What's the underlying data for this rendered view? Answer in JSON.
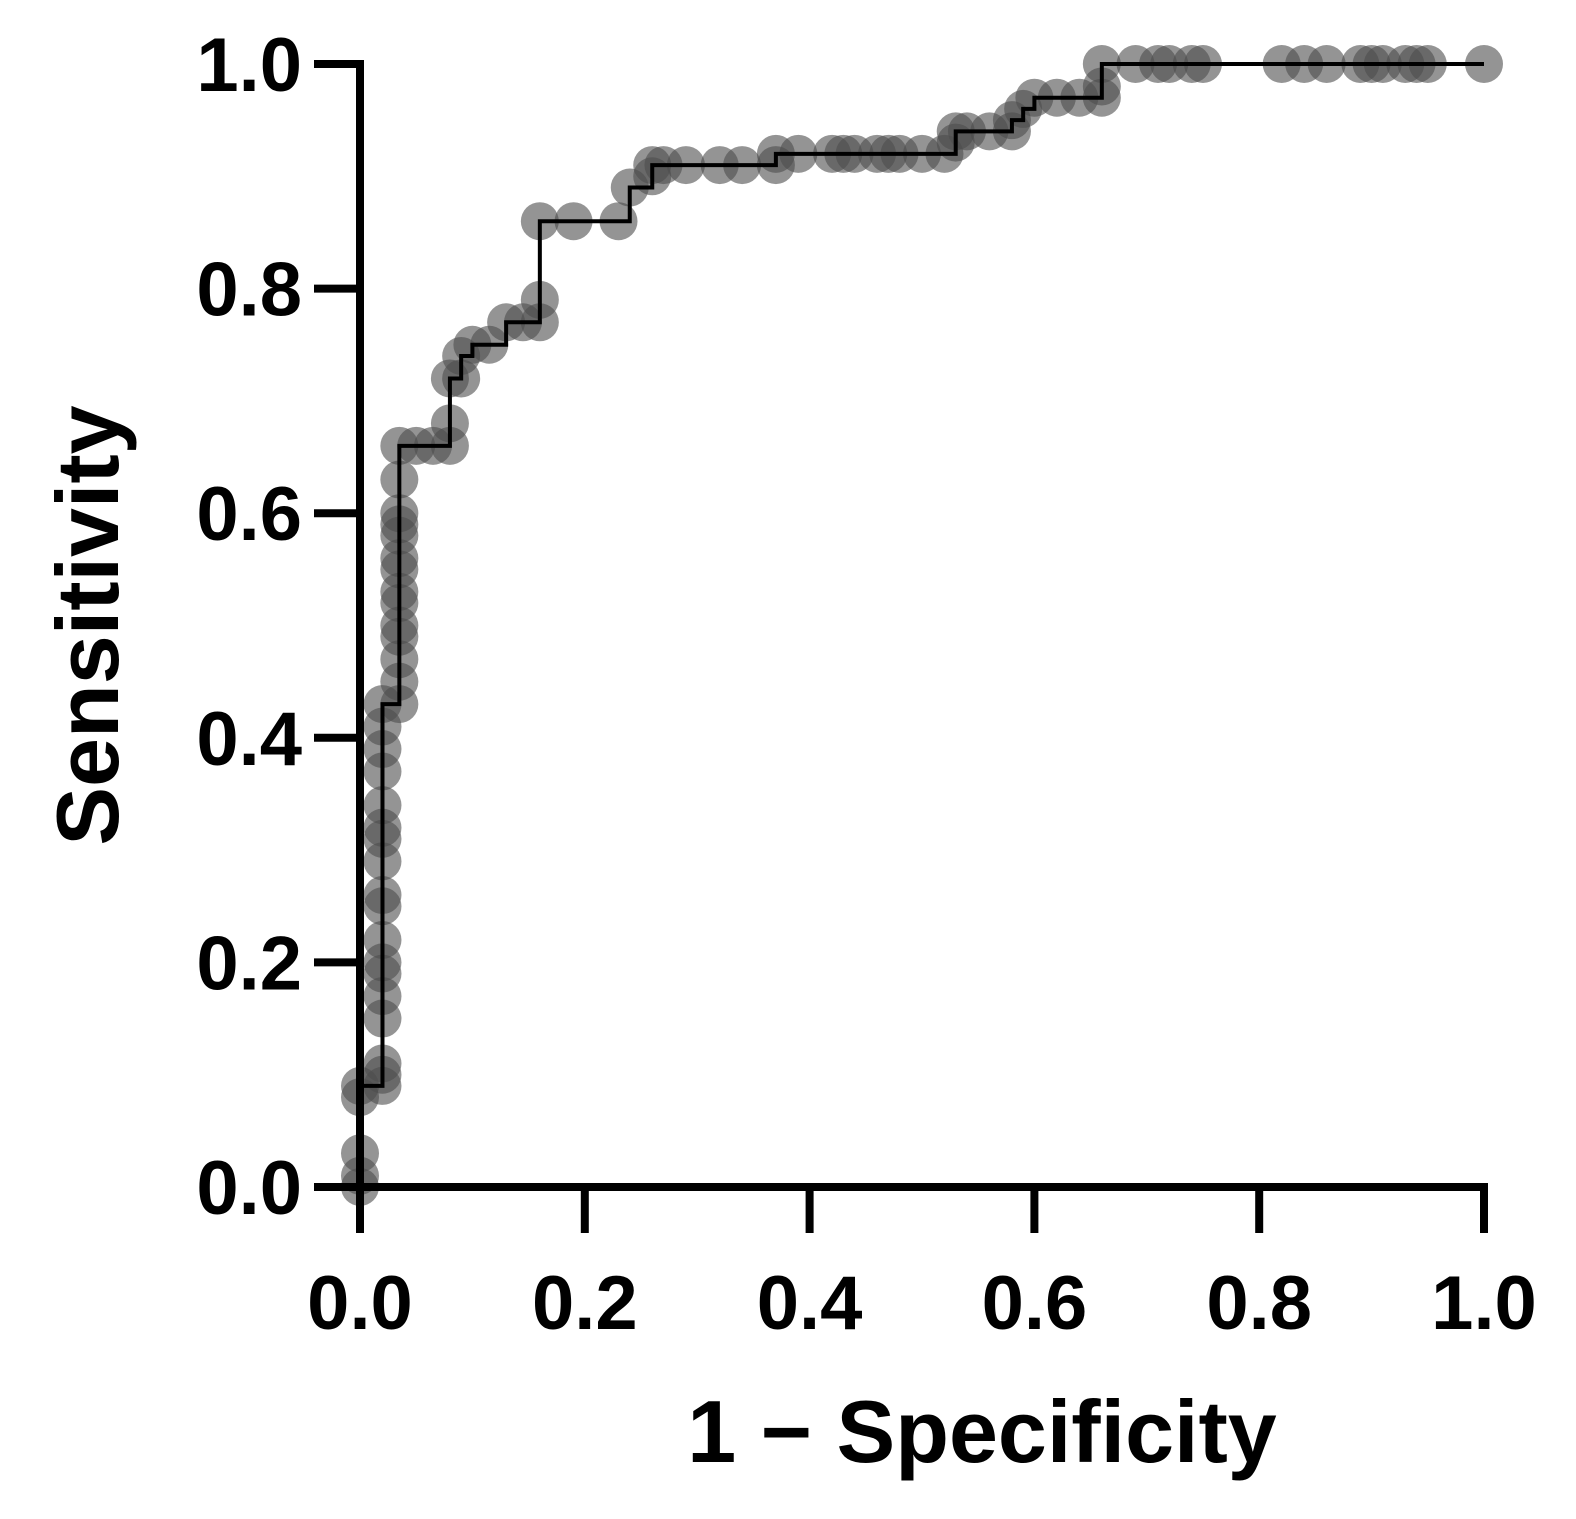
{
  "chart_data": {
    "type": "line",
    "xlabel": "1 − Specificity",
    "ylabel": "Sensitivity",
    "xlim": [
      0,
      1
    ],
    "ylim": [
      0,
      1
    ],
    "x_ticks": [
      "0.0",
      "0.2",
      "0.4",
      "0.6",
      "0.8",
      "1.0"
    ],
    "y_ticks": [
      "0.0",
      "0.2",
      "0.4",
      "0.6",
      "0.8",
      "1.0"
    ],
    "grid": false,
    "legend": "none",
    "marker_color": "#4d4d4d",
    "line_color": "#000000",
    "series": [
      {
        "points": [
          [
            0,
            0
          ],
          [
            0,
            0.01
          ],
          [
            0,
            0.03
          ],
          [
            0,
            0.08
          ],
          [
            0,
            0.09
          ],
          [
            0.02,
            0.09
          ],
          [
            0.02,
            0.1
          ],
          [
            0.02,
            0.11
          ],
          [
            0.02,
            0.15
          ],
          [
            0.02,
            0.17
          ],
          [
            0.02,
            0.19
          ],
          [
            0.02,
            0.2
          ],
          [
            0.02,
            0.22
          ],
          [
            0.02,
            0.25
          ],
          [
            0.02,
            0.26
          ],
          [
            0.02,
            0.29
          ],
          [
            0.02,
            0.31
          ],
          [
            0.02,
            0.32
          ],
          [
            0.02,
            0.34
          ],
          [
            0.02,
            0.37
          ],
          [
            0.02,
            0.39
          ],
          [
            0.02,
            0.41
          ],
          [
            0.02,
            0.43
          ],
          [
            0.035,
            0.43
          ],
          [
            0.035,
            0.45
          ],
          [
            0.035,
            0.47
          ],
          [
            0.035,
            0.49
          ],
          [
            0.035,
            0.5
          ],
          [
            0.035,
            0.52
          ],
          [
            0.035,
            0.53
          ],
          [
            0.035,
            0.55
          ],
          [
            0.035,
            0.56
          ],
          [
            0.035,
            0.58
          ],
          [
            0.035,
            0.59
          ],
          [
            0.035,
            0.6
          ],
          [
            0.035,
            0.63
          ],
          [
            0.035,
            0.66
          ],
          [
            0.05,
            0.66
          ],
          [
            0.065,
            0.66
          ],
          [
            0.08,
            0.66
          ],
          [
            0.08,
            0.68
          ],
          [
            0.08,
            0.72
          ],
          [
            0.09,
            0.72
          ],
          [
            0.09,
            0.74
          ],
          [
            0.1,
            0.75
          ],
          [
            0.115,
            0.75
          ],
          [
            0.13,
            0.77
          ],
          [
            0.145,
            0.77
          ],
          [
            0.16,
            0.77
          ],
          [
            0.16,
            0.79
          ],
          [
            0.16,
            0.86
          ],
          [
            0.19,
            0.86
          ],
          [
            0.23,
            0.86
          ],
          [
            0.24,
            0.89
          ],
          [
            0.26,
            0.9
          ],
          [
            0.26,
            0.91
          ],
          [
            0.27,
            0.91
          ],
          [
            0.29,
            0.91
          ],
          [
            0.32,
            0.91
          ],
          [
            0.34,
            0.91
          ],
          [
            0.37,
            0.91
          ],
          [
            0.37,
            0.92
          ],
          [
            0.39,
            0.92
          ],
          [
            0.42,
            0.92
          ],
          [
            0.43,
            0.92
          ],
          [
            0.44,
            0.92
          ],
          [
            0.46,
            0.92
          ],
          [
            0.47,
            0.92
          ],
          [
            0.48,
            0.92
          ],
          [
            0.5,
            0.92
          ],
          [
            0.52,
            0.92
          ],
          [
            0.53,
            0.93
          ],
          [
            0.53,
            0.94
          ],
          [
            0.54,
            0.94
          ],
          [
            0.56,
            0.94
          ],
          [
            0.58,
            0.94
          ],
          [
            0.58,
            0.95
          ],
          [
            0.59,
            0.96
          ],
          [
            0.6,
            0.97
          ],
          [
            0.62,
            0.97
          ],
          [
            0.64,
            0.97
          ],
          [
            0.66,
            0.97
          ],
          [
            0.66,
            0.98
          ],
          [
            0.66,
            1
          ],
          [
            0.69,
            1
          ],
          [
            0.71,
            1
          ],
          [
            0.72,
            1
          ],
          [
            0.74,
            1
          ],
          [
            0.75,
            1
          ],
          [
            0.82,
            1
          ],
          [
            0.84,
            1
          ],
          [
            0.86,
            1
          ],
          [
            0.89,
            1
          ],
          [
            0.9,
            1
          ],
          [
            0.91,
            1
          ],
          [
            0.93,
            1
          ],
          [
            0.94,
            1
          ],
          [
            0.95,
            1
          ],
          [
            1,
            1
          ]
        ]
      }
    ]
  }
}
